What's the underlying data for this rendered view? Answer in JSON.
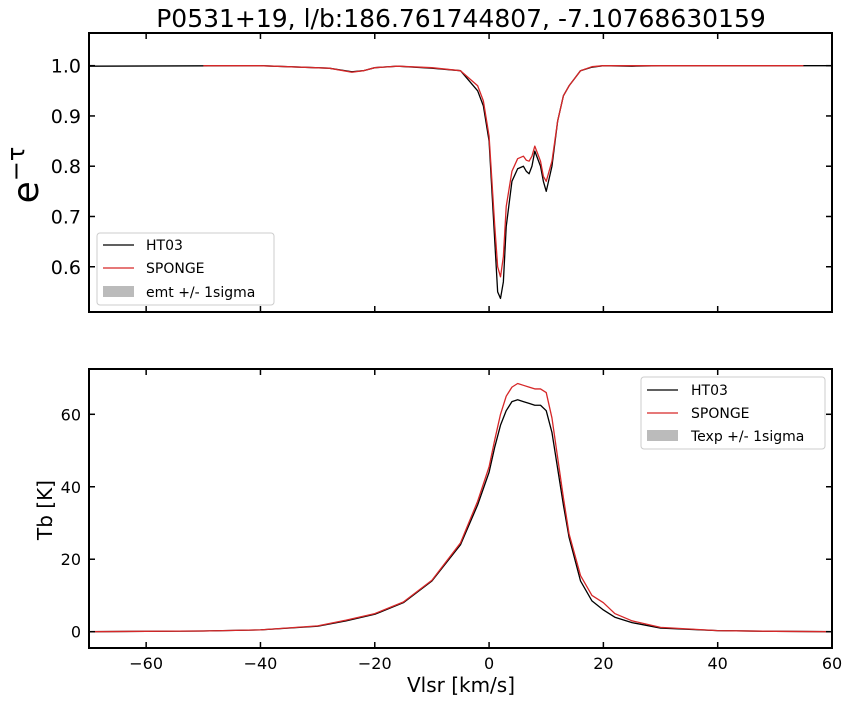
{
  "chart_data": [
    {
      "type": "line",
      "title": "P0531+19, l/b:186.761744807, -7.10768630159",
      "xlabel": "",
      "ylabel": "e^{-τ}",
      "xlim": [
        -70,
        60
      ],
      "ylim": [
        0.51,
        1.065
      ],
      "x_ticks": [
        -60,
        -40,
        -20,
        0,
        20,
        40,
        60
      ],
      "y_ticks": [
        "0.6",
        "0.7",
        "0.8",
        "0.9",
        "1.0"
      ],
      "legend_position": "lower-left",
      "legend": [
        "HT03",
        "SPONGE",
        "emt +/- 1sigma"
      ],
      "colors": {
        "HT03": "#000000",
        "SPONGE": "#d62728",
        "band": "#bbbbbb"
      },
      "series": [
        {
          "name": "HT03",
          "x": [
            -70,
            -40,
            -28,
            -24,
            -22,
            -20,
            -16,
            -10,
            -5,
            -2,
            -1,
            0,
            1,
            1.5,
            2,
            2.5,
            3,
            4,
            5,
            6,
            6.5,
            7,
            7.5,
            8,
            9,
            9.5,
            10,
            11,
            12,
            13,
            14,
            15,
            16,
            18,
            20,
            25,
            30,
            40,
            60
          ],
          "y": [
            0.999,
            1.0,
            0.995,
            0.988,
            0.99,
            0.996,
            0.999,
            0.995,
            0.99,
            0.95,
            0.92,
            0.85,
            0.65,
            0.55,
            0.537,
            0.57,
            0.68,
            0.77,
            0.795,
            0.8,
            0.79,
            0.785,
            0.8,
            0.83,
            0.8,
            0.77,
            0.75,
            0.8,
            0.89,
            0.94,
            0.96,
            0.975,
            0.99,
            0.997,
            1.0,
            0.999,
            1.0,
            1.0,
            1.0
          ]
        },
        {
          "name": "SPONGE",
          "x": [
            -50,
            -40,
            -28,
            -24,
            -22,
            -20,
            -16,
            -10,
            -5,
            -2,
            -1,
            0,
            1,
            1.5,
            2,
            2.5,
            3,
            4,
            5,
            6,
            6.5,
            7,
            7.5,
            8,
            9,
            9.5,
            10,
            11,
            12,
            13,
            14,
            15,
            16,
            18,
            20,
            25,
            30,
            40,
            55
          ],
          "y": [
            1.0,
            1.0,
            0.995,
            0.987,
            0.99,
            0.996,
            0.999,
            0.996,
            0.99,
            0.96,
            0.93,
            0.86,
            0.68,
            0.6,
            0.58,
            0.62,
            0.72,
            0.79,
            0.815,
            0.82,
            0.812,
            0.81,
            0.82,
            0.84,
            0.81,
            0.78,
            0.77,
            0.81,
            0.89,
            0.94,
            0.96,
            0.975,
            0.99,
            0.998,
            1.0,
            1.0,
            1.0,
            1.0,
            1.0
          ]
        }
      ]
    },
    {
      "type": "line",
      "title": "",
      "xlabel": "Vlsr [km/s]",
      "ylabel": "Tb [K]",
      "xlim": [
        -70,
        60
      ],
      "ylim": [
        -4.5,
        72.5
      ],
      "x_ticks": [
        -60,
        -40,
        -20,
        0,
        20,
        40,
        60
      ],
      "y_ticks": [
        0,
        20,
        40,
        60
      ],
      "legend_position": "upper-right",
      "legend": [
        "HT03",
        "SPONGE",
        "Texp +/- 1sigma"
      ],
      "colors": {
        "HT03": "#000000",
        "SPONGE": "#d62728",
        "band": "#bbbbbb"
      },
      "series": [
        {
          "name": "HT03",
          "x": [
            -70,
            -50,
            -40,
            -30,
            -25,
            -20,
            -15,
            -10,
            -5,
            -2,
            0,
            1,
            2,
            3,
            4,
            5,
            6,
            7,
            8,
            9,
            10,
            11,
            12,
            13,
            14,
            16,
            18,
            20,
            22,
            25,
            30,
            40,
            50,
            60
          ],
          "y": [
            0.0,
            0.2,
            0.5,
            1.5,
            3.0,
            4.8,
            8.0,
            14.0,
            24.0,
            35.0,
            44.0,
            51.0,
            57.0,
            61.0,
            63.5,
            64.0,
            63.5,
            63.0,
            62.5,
            62.5,
            61.0,
            55.0,
            45.0,
            35.0,
            26.0,
            14.0,
            8.5,
            6.0,
            4.0,
            2.5,
            1.0,
            0.3,
            0.1,
            0.0
          ]
        },
        {
          "name": "SPONGE",
          "x": [
            -70,
            -50,
            -40,
            -30,
            -25,
            -20,
            -15,
            -10,
            -5,
            -2,
            0,
            1,
            2,
            3,
            4,
            5,
            6,
            7,
            8,
            9,
            10,
            11,
            12,
            13,
            14,
            16,
            18,
            20,
            22,
            25,
            30,
            40,
            50,
            60
          ],
          "y": [
            0.0,
            0.2,
            0.5,
            1.6,
            3.2,
            5.0,
            8.2,
            14.2,
            24.5,
            36.0,
            45.5,
            53.0,
            60.0,
            65.0,
            67.5,
            68.5,
            68.0,
            67.5,
            67.0,
            67.0,
            66.0,
            59.0,
            48.0,
            37.0,
            27.0,
            15.5,
            10.0,
            8.0,
            5.0,
            3.0,
            1.2,
            0.3,
            0.1,
            0.0
          ]
        }
      ]
    }
  ]
}
